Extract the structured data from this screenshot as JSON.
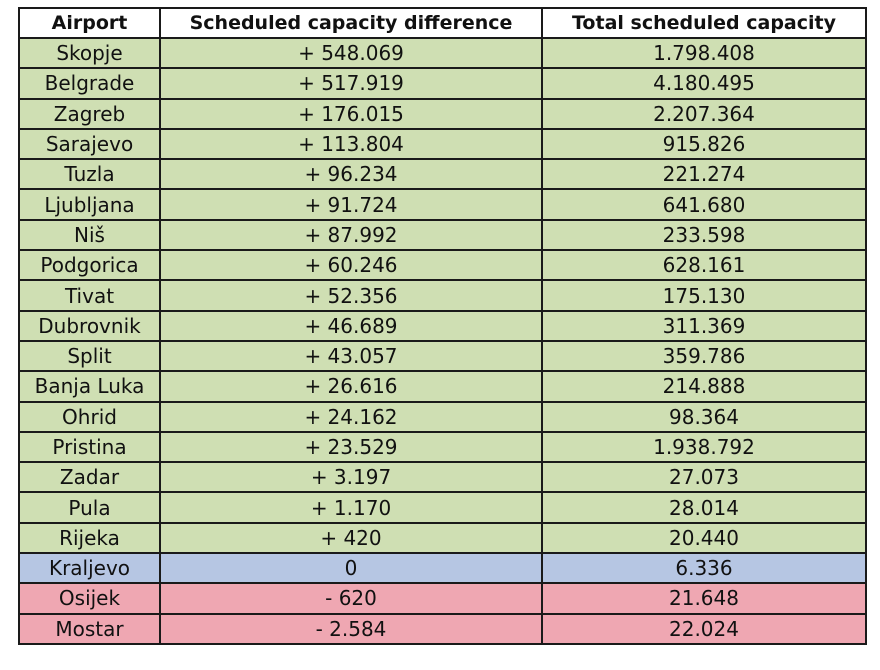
{
  "table": {
    "headers": [
      "Airport",
      "Scheduled capacity difference",
      "Total scheduled capacity"
    ],
    "colors": {
      "increase": "#cfdfb3",
      "neutral": "#b6c6e3",
      "decrease": "#efa7b2",
      "header": "#ffffff"
    },
    "rows": [
      {
        "airport": "Skopje",
        "difference": "+ 548.069",
        "total": "1.798.408",
        "status": "increase"
      },
      {
        "airport": "Belgrade",
        "difference": "+ 517.919",
        "total": "4.180.495",
        "status": "increase"
      },
      {
        "airport": "Zagreb",
        "difference": "+ 176.015",
        "total": "2.207.364",
        "status": "increase"
      },
      {
        "airport": "Sarajevo",
        "difference": "+ 113.804",
        "total": "915.826",
        "status": "increase"
      },
      {
        "airport": "Tuzla",
        "difference": "+ 96.234",
        "total": "221.274",
        "status": "increase"
      },
      {
        "airport": "Ljubljana",
        "difference": "+ 91.724",
        "total": "641.680",
        "status": "increase"
      },
      {
        "airport": "Niš",
        "difference": "+ 87.992",
        "total": "233.598",
        "status": "increase"
      },
      {
        "airport": "Podgorica",
        "difference": "+ 60.246",
        "total": "628.161",
        "status": "increase"
      },
      {
        "airport": "Tivat",
        "difference": "+ 52.356",
        "total": "175.130",
        "status": "increase"
      },
      {
        "airport": "Dubrovnik",
        "difference": "+ 46.689",
        "total": "311.369",
        "status": "increase"
      },
      {
        "airport": "Split",
        "difference": "+ 43.057",
        "total": "359.786",
        "status": "increase"
      },
      {
        "airport": "Banja Luka",
        "difference": "+ 26.616",
        "total": "214.888",
        "status": "increase"
      },
      {
        "airport": "Ohrid",
        "difference": "+ 24.162",
        "total": "98.364",
        "status": "increase"
      },
      {
        "airport": "Pristina",
        "difference": "+ 23.529",
        "total": "1.938.792",
        "status": "increase"
      },
      {
        "airport": "Zadar",
        "difference": "+ 3.197",
        "total": "27.073",
        "status": "increase"
      },
      {
        "airport": "Pula",
        "difference": "+ 1.170",
        "total": "28.014",
        "status": "increase"
      },
      {
        "airport": "Rijeka",
        "difference": "+ 420",
        "total": "20.440",
        "status": "increase"
      },
      {
        "airport": "Kraljevo",
        "difference": "0",
        "total": "6.336",
        "status": "neutral"
      },
      {
        "airport": "Osijek",
        "difference": "- 620",
        "total": "21.648",
        "status": "decrease"
      },
      {
        "airport": "Mostar",
        "difference": "- 2.584",
        "total": "22.024",
        "status": "decrease"
      }
    ]
  }
}
